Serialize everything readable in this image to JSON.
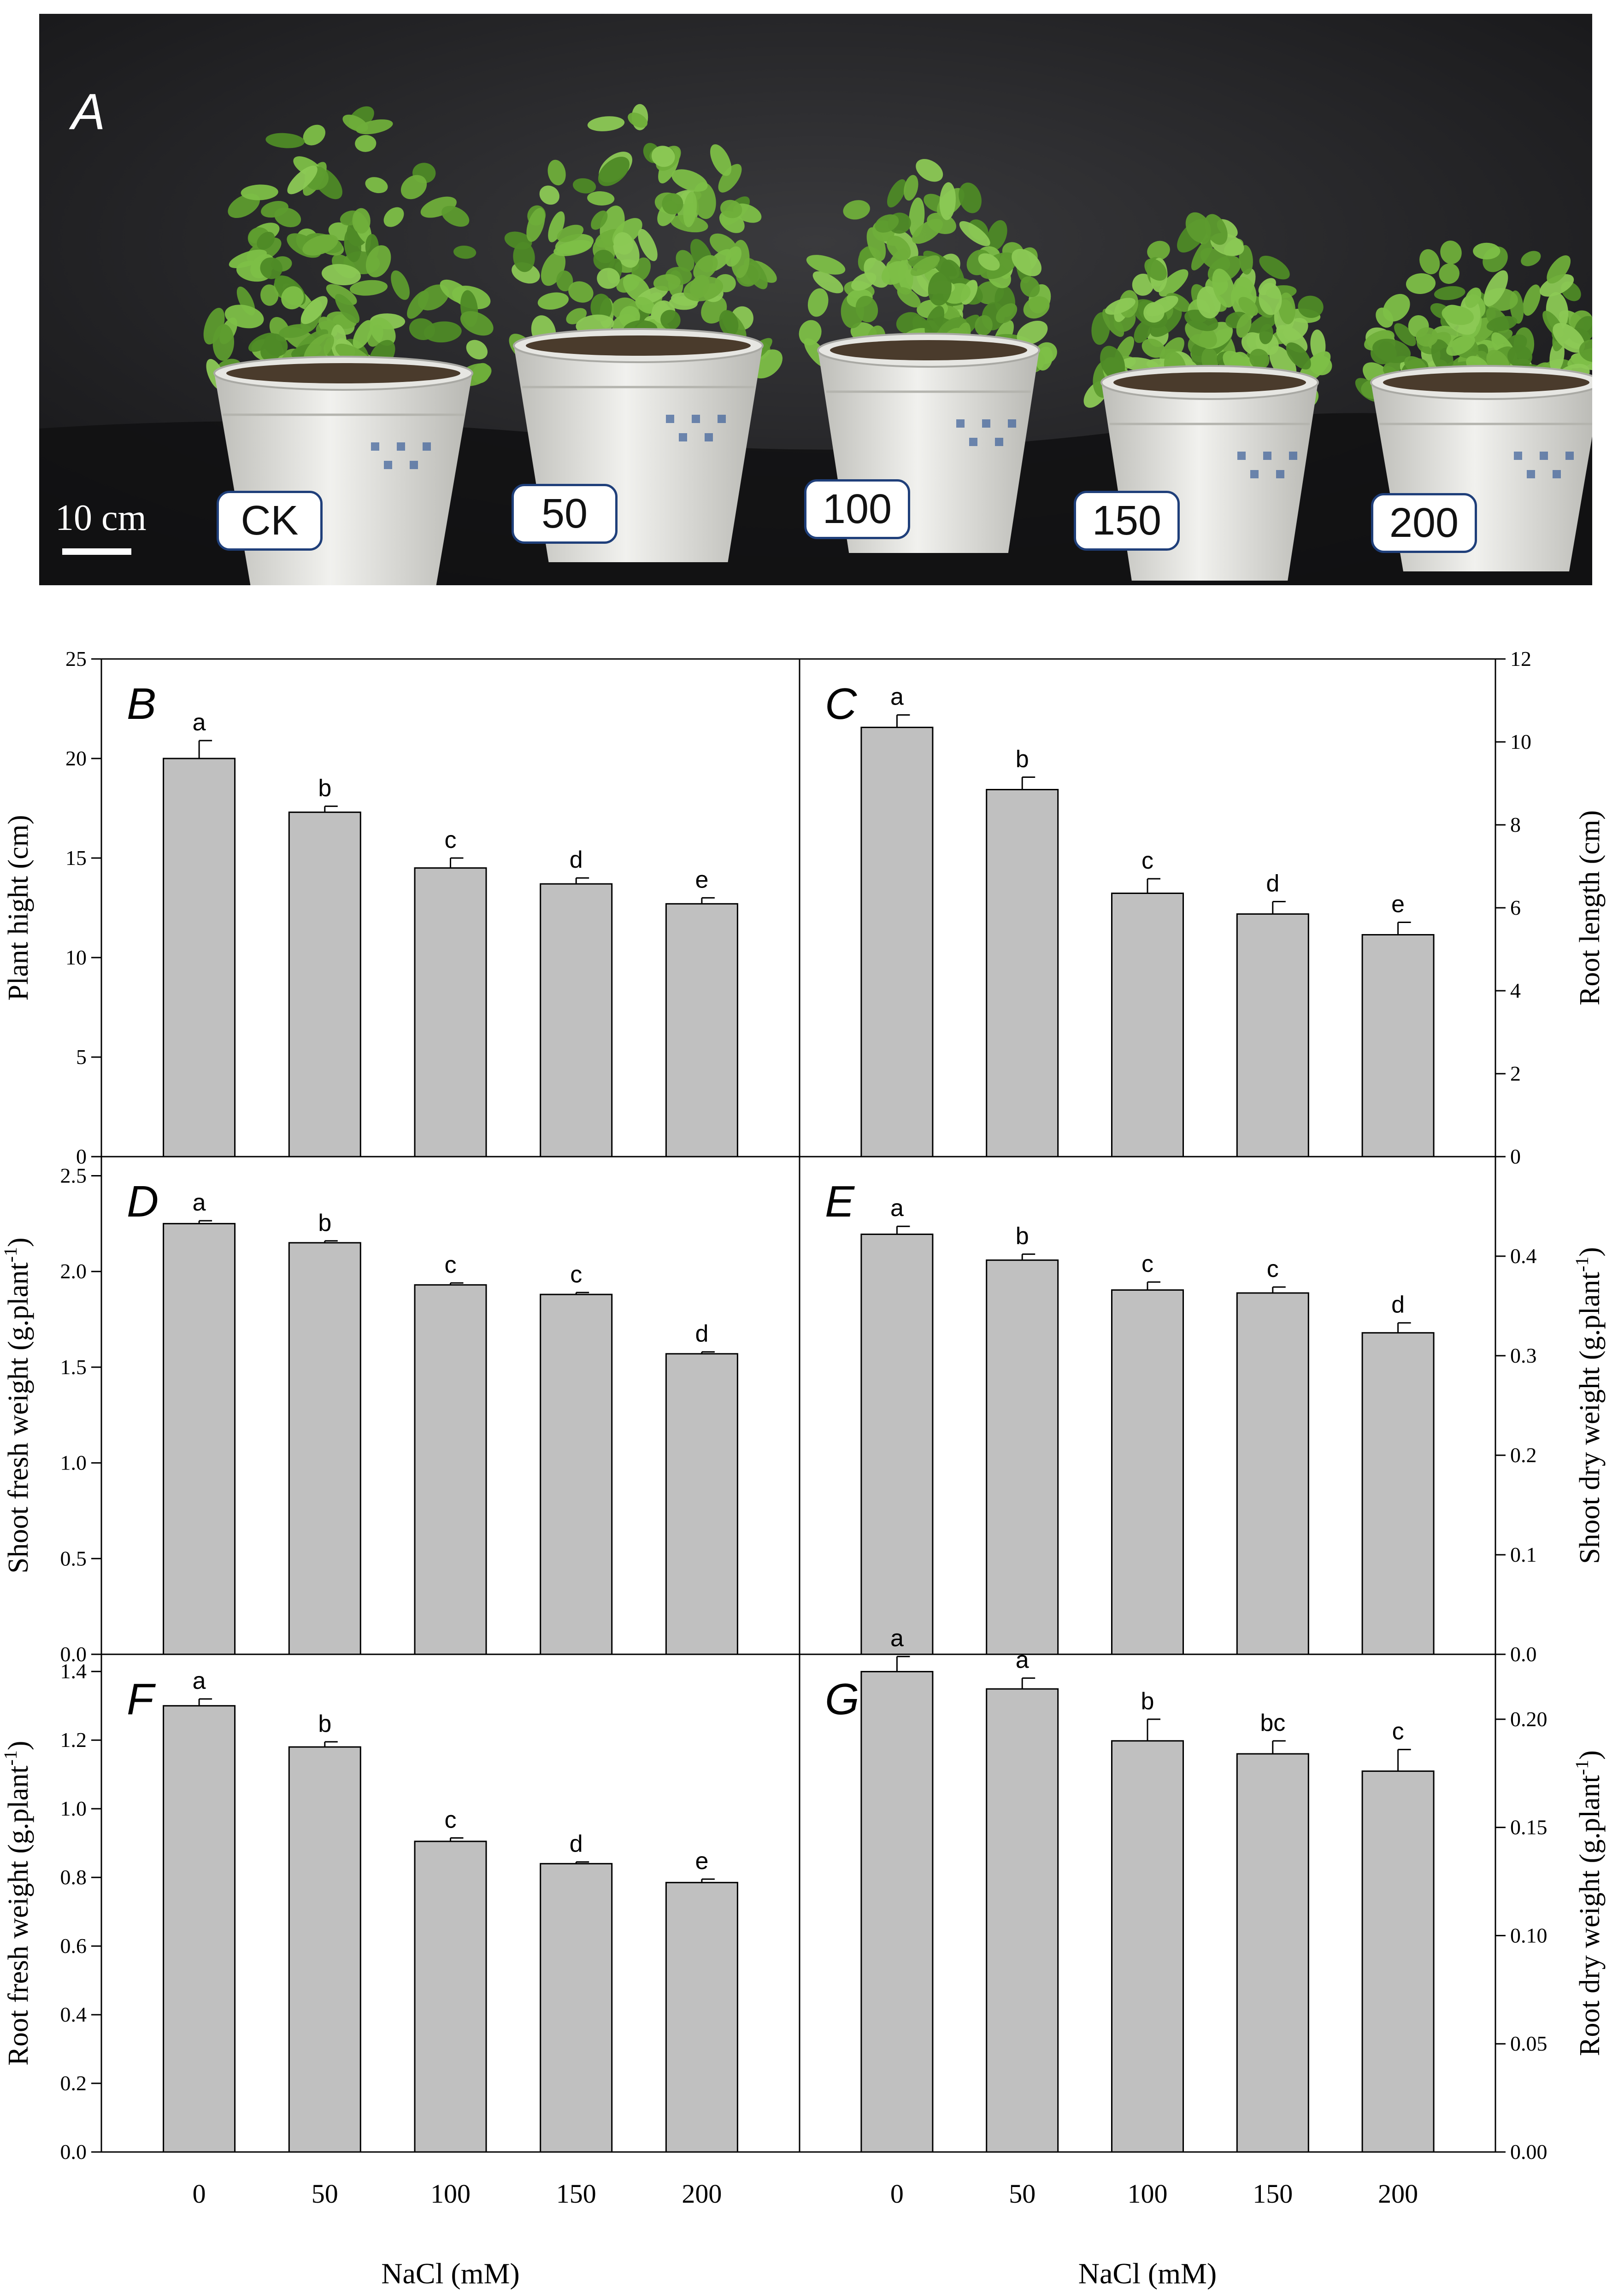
{
  "photo": {
    "panel_letter": "A",
    "scale_bar": "10 cm",
    "pot_labels": [
      "CK",
      "50",
      "100",
      "150",
      "200"
    ],
    "colors": {
      "background": "#1c1c1e",
      "foliage": "#6fae3a",
      "pot": "#e6e6e2"
    }
  },
  "chart_data": [
    {
      "type": "bar",
      "panel": "B",
      "ylabel": "Plant hight (cm)",
      "axis_side": "left",
      "categories": [
        "0",
        "50",
        "100",
        "150",
        "200"
      ],
      "values": [
        20.0,
        17.3,
        14.5,
        13.7,
        12.7
      ],
      "errors": [
        0.9,
        0.3,
        0.5,
        0.3,
        0.3
      ],
      "letters": [
        "a",
        "b",
        "c",
        "d",
        "e"
      ],
      "ylim": [
        0,
        25
      ],
      "ticks": [
        0,
        5,
        10,
        15,
        20,
        25
      ],
      "tick_labels": [
        "0",
        "5",
        "10",
        "15",
        "20",
        "25"
      ]
    },
    {
      "type": "bar",
      "panel": "C",
      "ylabel": "Root  length (cm)",
      "axis_side": "right",
      "categories": [
        "0",
        "50",
        "100",
        "150",
        "200"
      ],
      "values": [
        10.35,
        8.85,
        6.35,
        5.85,
        5.35
      ],
      "errors": [
        0.3,
        0.3,
        0.35,
        0.3,
        0.3
      ],
      "letters": [
        "a",
        "b",
        "c",
        "d",
        "e"
      ],
      "ylim": [
        0,
        12
      ],
      "ticks": [
        0,
        2,
        4,
        6,
        8,
        10,
        12
      ],
      "tick_labels": [
        "0",
        "2",
        "4",
        "6",
        "8",
        "10",
        "12"
      ]
    },
    {
      "type": "bar",
      "panel": "D",
      "ylabel": "Shoot fresh weight (g.plant",
      "ylabel_sup": "-1",
      "ylabel_end": ")",
      "axis_side": "left",
      "categories": [
        "0",
        "50",
        "100",
        "150",
        "200"
      ],
      "values": [
        2.25,
        2.15,
        1.93,
        1.88,
        1.57
      ],
      "errors": [
        0.015,
        0.01,
        0.01,
        0.01,
        0.01
      ],
      "letters": [
        "a",
        "b",
        "c",
        "c",
        "d"
      ],
      "ylim": [
        0,
        2.6
      ],
      "ticks": [
        0,
        0.5,
        1.0,
        1.5,
        2.0,
        2.5
      ],
      "tick_labels": [
        "0.0",
        "0.5",
        "1.0",
        "1.5",
        "2.0",
        "2.5"
      ]
    },
    {
      "type": "bar",
      "panel": "E",
      "ylabel": "Shoot dry weight (g.plant",
      "ylabel_sup": "-1",
      "ylabel_end": ")",
      "axis_side": "right",
      "categories": [
        "0",
        "50",
        "100",
        "150",
        "200"
      ],
      "values": [
        0.422,
        0.396,
        0.366,
        0.363,
        0.323
      ],
      "errors": [
        0.008,
        0.006,
        0.008,
        0.006,
        0.01
      ],
      "letters": [
        "a",
        "b",
        "c",
        "c",
        "d"
      ],
      "ylim": [
        0,
        0.5
      ],
      "ticks": [
        0,
        0.1,
        0.2,
        0.3,
        0.4
      ],
      "tick_labels": [
        "0.0",
        "0.1",
        "0.2",
        "0.3",
        "0.4"
      ]
    },
    {
      "type": "bar",
      "panel": "F",
      "ylabel": "Root fresh weight (g.plant",
      "ylabel_sup": "-1",
      "ylabel_end": ")",
      "axis_side": "left",
      "categories": [
        "0",
        "50",
        "100",
        "150",
        "200"
      ],
      "values": [
        1.3,
        1.18,
        0.905,
        0.84,
        0.785
      ],
      "errors": [
        0.02,
        0.015,
        0.01,
        0.005,
        0.01
      ],
      "letters": [
        "a",
        "b",
        "c",
        "d",
        "e"
      ],
      "ylim": [
        0,
        1.45
      ],
      "ticks": [
        0,
        0.2,
        0.4,
        0.6,
        0.8,
        1.0,
        1.2,
        1.4
      ],
      "tick_labels": [
        "0.0",
        "0.2",
        "0.4",
        "0.6",
        "0.8",
        "1.0",
        "1.2",
        "1.4"
      ]
    },
    {
      "type": "bar",
      "panel": "G",
      "ylabel": "Root dry weight (g.plant",
      "ylabel_sup": "-1",
      "ylabel_end": ")",
      "axis_side": "right",
      "categories": [
        "0",
        "50",
        "100",
        "150",
        "200"
      ],
      "values": [
        0.222,
        0.214,
        0.19,
        0.184,
        0.176
      ],
      "errors": [
        0.007,
        0.005,
        0.01,
        0.006,
        0.01
      ],
      "letters": [
        "a",
        "a",
        "b",
        "bc",
        "c"
      ],
      "ylim": [
        0,
        0.23
      ],
      "ticks": [
        0,
        0.05,
        0.1,
        0.15,
        0.2
      ],
      "tick_labels": [
        "0.00",
        "0.05",
        "0.10",
        "0.15",
        "0.20"
      ]
    }
  ],
  "xlabels": [
    "NaCl (mM)",
    "NaCl (mM)"
  ],
  "bar_color": "#c0c0c0"
}
